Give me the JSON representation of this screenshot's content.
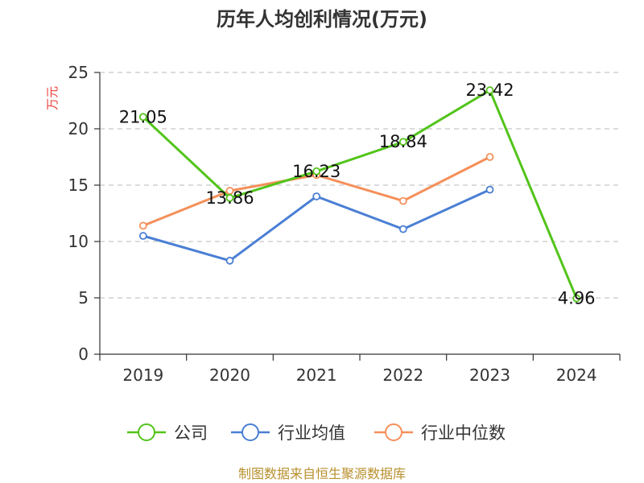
{
  "chart_data": {
    "type": "line",
    "title": "历年人均创利情况(万元)",
    "ylabel": "万元",
    "xlabel": "",
    "categories": [
      "2019",
      "2020",
      "2021",
      "2022",
      "2023",
      "2024"
    ],
    "yticks": [
      "0",
      "5",
      "10",
      "15",
      "20",
      "25"
    ],
    "ylim": [
      0,
      25
    ],
    "grid": true,
    "legend_position": "bottom",
    "series": [
      {
        "name": "公司",
        "color": "#52c41a",
        "values": [
          21.05,
          13.86,
          16.23,
          18.84,
          23.42,
          4.96
        ],
        "labels": [
          "21.05",
          "13.86",
          "16.23",
          "18.84",
          "23.42",
          "4.96"
        ]
      },
      {
        "name": "行业均值",
        "color": "#4a7fd4",
        "values": [
          10.5,
          8.3,
          14.0,
          11.1,
          14.6,
          null
        ]
      },
      {
        "name": "行业中位数",
        "color": "#f4905a",
        "values": [
          11.4,
          14.5,
          15.9,
          13.6,
          17.5,
          null
        ]
      }
    ],
    "ylabel_color": "#e8413c"
  },
  "source": {
    "text": "制图数据来自恒生聚源数据库",
    "color": "#b8902e"
  }
}
